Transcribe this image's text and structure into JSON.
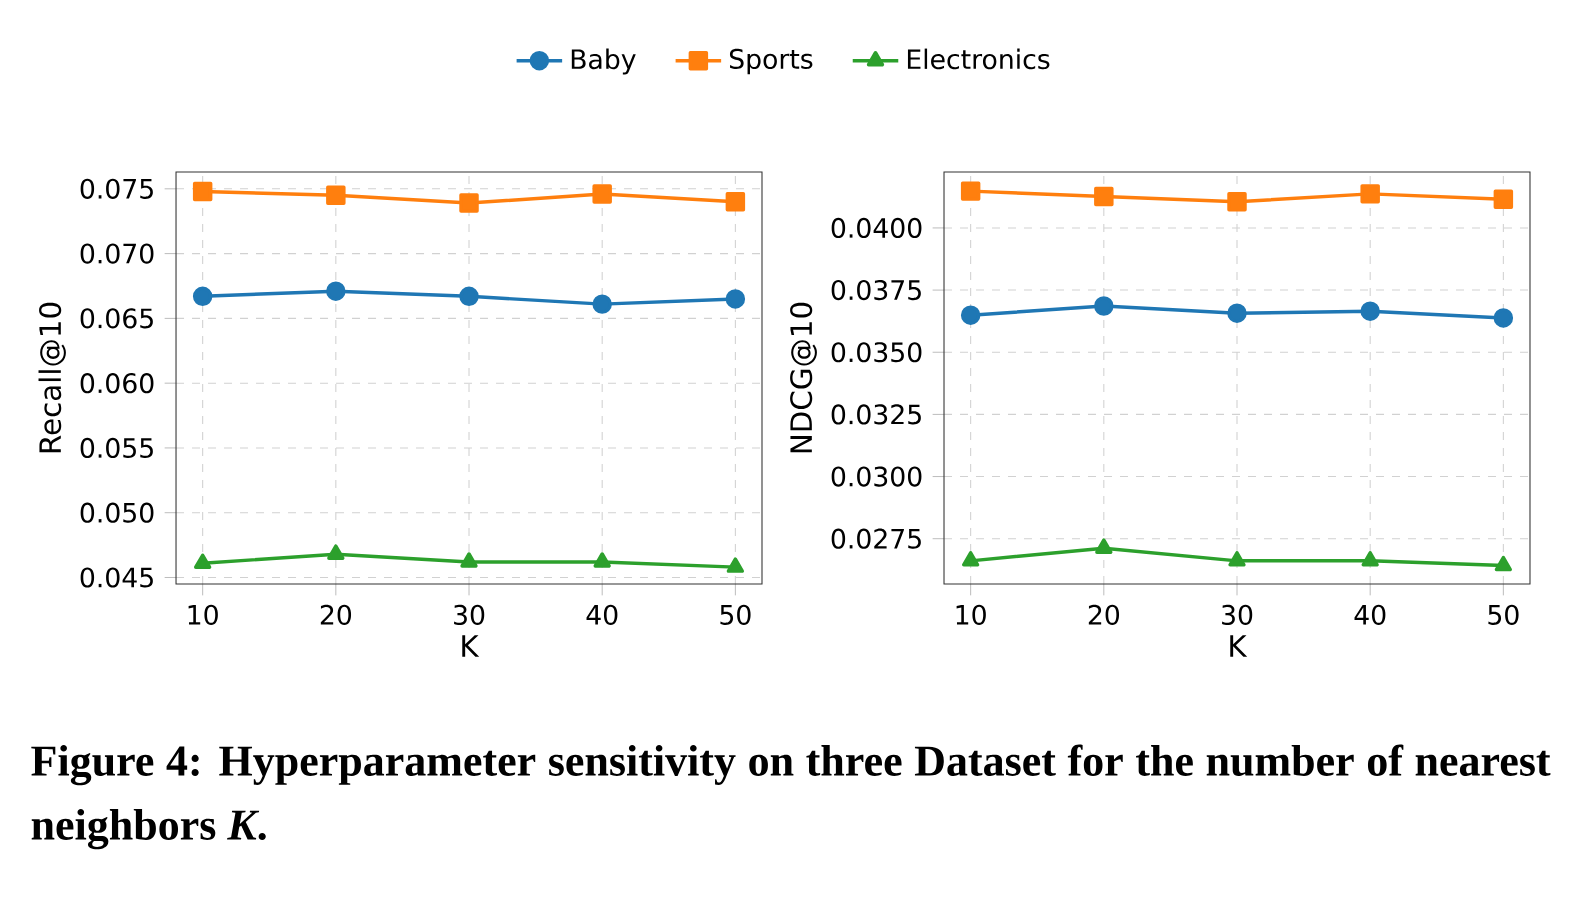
{
  "chart_data": [
    {
      "type": "line",
      "xlabel": "K",
      "ylabel": "Recall@10",
      "x": [
        10,
        20,
        30,
        40,
        50
      ],
      "xlim": [
        8,
        52
      ],
      "xticks": [
        10,
        20,
        30,
        40,
        50
      ],
      "ylim": [
        0.0445,
        0.0763
      ],
      "yticks": [
        0.045,
        {
          "value": 0.05,
          "label": "0.050"
        },
        0.055,
        {
          "value": 0.06,
          "label": "0.060"
        },
        0.065,
        {
          "value": 0.07,
          "label": "0.070"
        },
        0.075
      ],
      "grid": true,
      "legend": "top",
      "annotations": [
        "Figure 4: Hyperparameter sensitivity on three Dataset for the number of nearest neighbors *K*."
      ],
      "series": [
        {
          "name": "Baby",
          "color": "#1f77b4",
          "marker": "circle",
          "values": [
            0.0667,
            0.0671,
            0.0667,
            0.0661,
            0.0665
          ]
        },
        {
          "name": "Sports",
          "color": "#ff7f0e",
          "marker": "square",
          "values": [
            0.0748,
            0.0745,
            0.0739,
            0.0746,
            0.074
          ]
        },
        {
          "name": "Electronics",
          "color": "#2ca02c",
          "marker": "triangle",
          "values": [
            0.0461,
            0.0468,
            0.0462,
            0.0462,
            0.0458
          ]
        }
      ]
    },
    {
      "type": "line",
      "xlabel": "K",
      "ylabel": "NDCG@10",
      "x": [
        10,
        20,
        30,
        40,
        50
      ],
      "xlim": [
        8,
        52
      ],
      "xticks": [
        10,
        20,
        30,
        40,
        50
      ],
      "ylim": [
        0.02568,
        0.04225
      ],
      "yticks": [
        0.0275,
        {
          "value": 0.03,
          "label": "0.0300"
        },
        0.0325,
        {
          "value": 0.035,
          "label": "0.0350"
        },
        0.0375,
        {
          "value": 0.04,
          "label": "0.0400"
        }
      ],
      "grid": true,
      "series": [
        {
          "color": "#1f77b4",
          "marker": "circle",
          "values": [
            0.03649,
            0.03686,
            0.03657,
            0.03665,
            0.03638
          ]
        },
        {
          "color": "#ff7f0e",
          "marker": "square",
          "values": [
            0.04148,
            0.04126,
            0.04105,
            0.04137,
            0.04115
          ]
        },
        {
          "color": "#2ca02c",
          "marker": "triangle",
          "values": [
            0.02661,
            0.02712,
            0.02661,
            0.02661,
            0.02642
          ]
        }
      ]
    }
  ]
}
